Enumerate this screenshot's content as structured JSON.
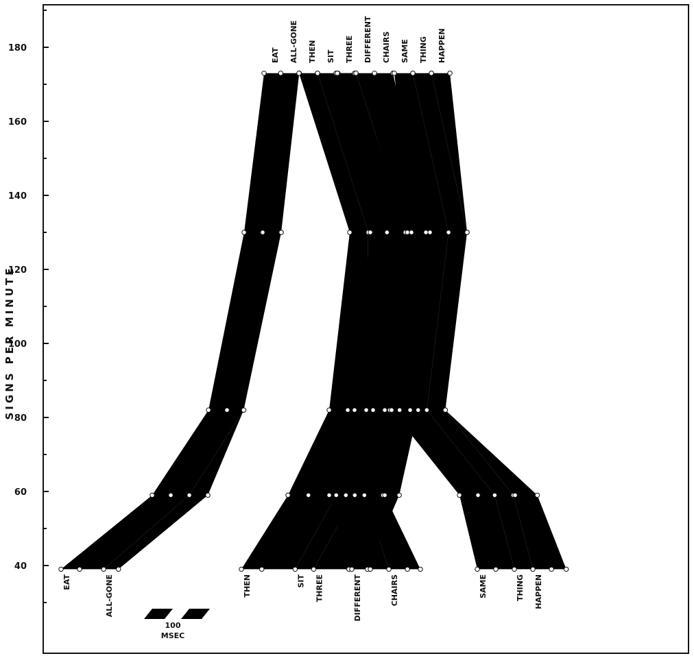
{
  "chart_data": {
    "type": "area",
    "title": "",
    "ylabel": "SIGNS PER MINUTE",
    "xlabel": "",
    "ylim": [
      20,
      190
    ],
    "yticks": [
      40,
      60,
      80,
      100,
      120,
      140,
      160,
      180
    ],
    "ytick_labels": [
      "40",
      "60",
      "80",
      "100",
      "120",
      "140",
      "160",
      "180"
    ],
    "grid": false,
    "legend": "none",
    "rates": [
      39,
      59,
      82,
      130,
      173
    ],
    "words": [
      "EAT",
      "ALL-GONE",
      "THEN",
      "SIT",
      "THREE",
      "DIFFERENT",
      "CHAIRS",
      "SAME",
      "THING",
      "HAPPEN"
    ],
    "sentences": [
      {
        "words": [
          "EAT",
          "ALL-GONE"
        ],
        "boundaries": [
          [
            0,
            10,
            23,
            31
          ],
          [
            0,
            10,
            20,
            30
          ],
          [
            0,
            10,
            19,
            19
          ],
          [
            0,
            10,
            20,
            20
          ],
          [
            0,
            9,
            19,
            19
          ]
        ]
      },
      {
        "words": [
          "THEN",
          "SIT",
          "THREE"
        ],
        "boundaries": [
          [
            0,
            11,
            29,
            39,
            58,
            68
          ],
          [
            0,
            11,
            26,
            36,
            52,
            60
          ],
          [
            0,
            10,
            20,
            30,
            38,
            48
          ],
          [
            0,
            10,
            10,
            20,
            30,
            32
          ],
          [
            0,
            10,
            10,
            21,
            20,
            30
          ]
        ]
      },
      {
        "words": [
          "DIFFERENT",
          "CHAIRS"
        ],
        "boundaries": [
          [
            0,
            10,
            20,
            30,
            37
          ],
          [
            0,
            9,
            19,
            29,
            30
          ],
          [
            0,
            10,
            19,
            20,
            30
          ],
          [
            0,
            9,
            20,
            20,
            30
          ],
          [
            0,
            10,
            10,
            20,
            30
          ]
        ]
      },
      {
        "words": [
          "SAME",
          "THING",
          "HAPPEN"
        ],
        "boundaries": [
          [
            0,
            10,
            20,
            30,
            40,
            48
          ],
          [
            0,
            10,
            19,
            29,
            30,
            42
          ],
          [
            0,
            10,
            19,
            29,
            29,
            29
          ],
          [
            0,
            10,
            20,
            30,
            30,
            30
          ],
          [
            0,
            10,
            10,
            20,
            20,
            30
          ]
        ]
      }
    ],
    "scale_label": {
      "value": "100",
      "unit": "MSEC"
    },
    "colors": {
      "fill": "#000000",
      "background": "#ffffff",
      "marker": "#ffffff"
    }
  }
}
